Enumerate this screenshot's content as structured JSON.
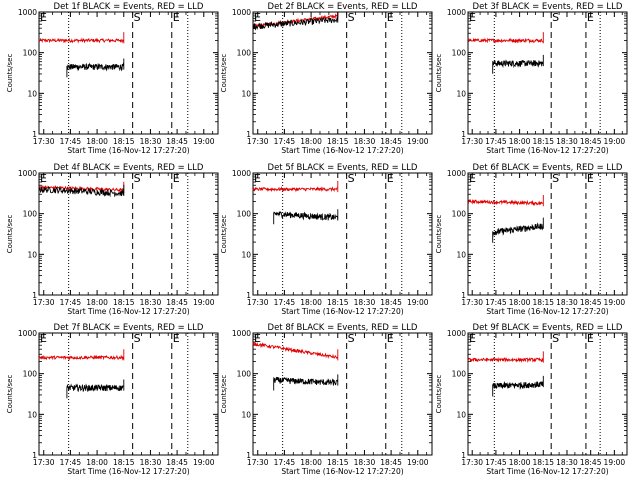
{
  "colors": {
    "events": "#000000",
    "lld": "#e00000",
    "axes": "#000000",
    "background": "#ffffff"
  },
  "chart_data": [
    {
      "type": "line",
      "title": "Det 1f BLACK = Events, RED = LLD",
      "xlabel": "Start Time (16-Nov-12 17:27:20)",
      "ylabel": "Counts/sec",
      "yscale": "log",
      "ylim": [
        1,
        1000
      ],
      "y_ticks": [
        "1",
        "10",
        "100",
        "1000"
      ],
      "x_ticks": [
        "17:30",
        "17:45",
        "18:00",
        "18:15",
        "18:30",
        "18:45",
        "19:00"
      ],
      "xlim": [
        "17:27:20",
        "19:08:00"
      ],
      "markers": [
        {
          "label": "E",
          "time": "17:27:20",
          "style": "dotted"
        },
        {
          "label": "",
          "time": "17:44:00",
          "style": "dotted"
        },
        {
          "label": "S",
          "time": "18:20:00",
          "style": "dashed"
        },
        {
          "label": "E",
          "time": "18:42:00",
          "style": "dashed"
        },
        {
          "label": "",
          "time": "18:51:00",
          "style": "dotted"
        }
      ],
      "series": [
        {
          "name": "LLD",
          "color": "#e00000",
          "x": [
            "17:27:20",
            "18:15:00"
          ],
          "y": [
            200,
            200
          ]
        },
        {
          "name": "Events",
          "color": "#000000",
          "x": [
            "17:43:00",
            "18:15:00"
          ],
          "y": [
            45,
            45
          ]
        }
      ]
    },
    {
      "type": "line",
      "title": "Det 2f BLACK = Events, RED = LLD",
      "xlabel": "Start Time (16-Nov-12 17:27:20)",
      "ylabel": "Counts/sec",
      "yscale": "log",
      "ylim": [
        1,
        1000
      ],
      "y_ticks": [
        "1",
        "10",
        "100",
        "1000"
      ],
      "x_ticks": [
        "17:30",
        "17:45",
        "18:00",
        "18:15",
        "18:30",
        "18:45",
        "19:00"
      ],
      "xlim": [
        "17:27:20",
        "19:08:00"
      ],
      "markers": [
        {
          "label": "E",
          "time": "17:27:20",
          "style": "dotted"
        },
        {
          "label": "",
          "time": "17:44:00",
          "style": "dotted"
        },
        {
          "label": "S",
          "time": "18:20:00",
          "style": "dashed"
        },
        {
          "label": "E",
          "time": "18:42:00",
          "style": "dashed"
        },
        {
          "label": "",
          "time": "18:51:00",
          "style": "dotted"
        }
      ],
      "series": [
        {
          "name": "LLD",
          "color": "#e00000",
          "x": [
            "17:27:20",
            "18:15:00"
          ],
          "y": [
            450,
            800
          ]
        },
        {
          "name": "Events",
          "color": "#000000",
          "x": [
            "17:27:20",
            "18:15:00"
          ],
          "y": [
            450,
            650
          ]
        }
      ]
    },
    {
      "type": "line",
      "title": "Det 3f BLACK = Events, RED = LLD",
      "xlabel": "Start Time (16-Nov-12 17:27:20)",
      "ylabel": "Counts/sec",
      "yscale": "log",
      "ylim": [
        1,
        1000
      ],
      "y_ticks": [
        "1",
        "10",
        "100",
        "1000"
      ],
      "x_ticks": [
        "17:30",
        "17:45",
        "18:00",
        "18:15",
        "18:30",
        "18:45",
        "19:00"
      ],
      "xlim": [
        "17:27:20",
        "19:08:00"
      ],
      "markers": [
        {
          "label": "E",
          "time": "17:27:20",
          "style": "dotted"
        },
        {
          "label": "",
          "time": "17:44:00",
          "style": "dotted"
        },
        {
          "label": "S",
          "time": "18:20:00",
          "style": "dashed"
        },
        {
          "label": "E",
          "time": "18:42:00",
          "style": "dashed"
        },
        {
          "label": "",
          "time": "18:51:00",
          "style": "dotted"
        }
      ],
      "series": [
        {
          "name": "LLD",
          "color": "#e00000",
          "x": [
            "17:27:20",
            "18:15:00"
          ],
          "y": [
            200,
            200
          ]
        },
        {
          "name": "Events",
          "color": "#000000",
          "x": [
            "17:43:00",
            "18:15:00"
          ],
          "y": [
            55,
            55
          ]
        }
      ]
    },
    {
      "type": "line",
      "title": "Det 4f BLACK = Events, RED = LLD",
      "xlabel": "Start Time (16-Nov-12 17:27:20)",
      "ylabel": "Counts/sec",
      "yscale": "log",
      "ylim": [
        1,
        1000
      ],
      "y_ticks": [
        "1",
        "10",
        "100",
        "1000"
      ],
      "x_ticks": [
        "17:30",
        "17:45",
        "18:00",
        "18:15",
        "18:30",
        "18:45",
        "19:00"
      ],
      "xlim": [
        "17:27:20",
        "19:08:00"
      ],
      "markers": [
        {
          "label": "E",
          "time": "17:27:20",
          "style": "dotted"
        },
        {
          "label": "",
          "time": "17:44:00",
          "style": "dotted"
        },
        {
          "label": "S",
          "time": "18:20:00",
          "style": "dashed"
        },
        {
          "label": "E",
          "time": "18:42:00",
          "style": "dashed"
        },
        {
          "label": "",
          "time": "18:51:00",
          "style": "dotted"
        }
      ],
      "series": [
        {
          "name": "LLD",
          "color": "#e00000",
          "x": [
            "17:27:20",
            "18:15:00"
          ],
          "y": [
            450,
            380
          ]
        },
        {
          "name": "Events",
          "color": "#000000",
          "x": [
            "17:27:20",
            "18:15:00"
          ],
          "y": [
            400,
            320
          ]
        }
      ]
    },
    {
      "type": "line",
      "title": "Det 5f BLACK = Events, RED = LLD",
      "xlabel": "Start Time (16-Nov-12 17:27:20)",
      "ylabel": "Counts/sec",
      "yscale": "log",
      "ylim": [
        1,
        1000
      ],
      "y_ticks": [
        "1",
        "10",
        "100",
        "1000"
      ],
      "x_ticks": [
        "17:30",
        "17:45",
        "18:00",
        "18:15",
        "18:30",
        "18:45",
        "19:00"
      ],
      "xlim": [
        "17:27:20",
        "19:08:00"
      ],
      "markers": [
        {
          "label": "E",
          "time": "17:27:20",
          "style": "dotted"
        },
        {
          "label": "",
          "time": "17:44:00",
          "style": "dotted"
        },
        {
          "label": "S",
          "time": "18:20:00",
          "style": "dashed"
        },
        {
          "label": "E",
          "time": "18:42:00",
          "style": "dashed"
        },
        {
          "label": "",
          "time": "18:51:00",
          "style": "dotted"
        }
      ],
      "series": [
        {
          "name": "LLD",
          "color": "#e00000",
          "x": [
            "17:27:20",
            "18:15:00"
          ],
          "y": [
            400,
            400
          ]
        },
        {
          "name": "Events",
          "color": "#000000",
          "x": [
            "17:39:00",
            "18:15:00"
          ],
          "y": [
            100,
            80
          ]
        }
      ]
    },
    {
      "type": "line",
      "title": "Det 6f BLACK = Events, RED = LLD",
      "xlabel": "Start Time (16-Nov-12 17:27:20)",
      "ylabel": "Counts/sec",
      "yscale": "log",
      "ylim": [
        1,
        1000
      ],
      "y_ticks": [
        "1",
        "10",
        "100",
        "1000"
      ],
      "x_ticks": [
        "17:30",
        "17:45",
        "18:00",
        "18:15",
        "18:30",
        "18:45",
        "19:00"
      ],
      "xlim": [
        "17:27:20",
        "19:08:00"
      ],
      "markers": [
        {
          "label": "E",
          "time": "17:27:20",
          "style": "dotted"
        },
        {
          "label": "",
          "time": "17:44:00",
          "style": "dotted"
        },
        {
          "label": "S",
          "time": "18:20:00",
          "style": "dashed"
        },
        {
          "label": "E",
          "time": "18:42:00",
          "style": "dashed"
        },
        {
          "label": "",
          "time": "18:51:00",
          "style": "dotted"
        }
      ],
      "series": [
        {
          "name": "LLD",
          "color": "#e00000",
          "x": [
            "17:27:20",
            "18:15:00"
          ],
          "y": [
            200,
            180
          ]
        },
        {
          "name": "Events",
          "color": "#000000",
          "x": [
            "17:43:00",
            "18:15:00"
          ],
          "y": [
            35,
            50
          ]
        }
      ]
    },
    {
      "type": "line",
      "title": "Det 7f BLACK = Events, RED = LLD",
      "xlabel": "Start Time (16-Nov-12 17:27:20)",
      "ylabel": "Counts/sec",
      "yscale": "log",
      "ylim": [
        1,
        1000
      ],
      "y_ticks": [
        "1",
        "10",
        "100",
        "1000"
      ],
      "x_ticks": [
        "17:30",
        "17:45",
        "18:00",
        "18:15",
        "18:30",
        "18:45",
        "19:00"
      ],
      "xlim": [
        "17:27:20",
        "19:08:00"
      ],
      "markers": [
        {
          "label": "E",
          "time": "17:27:20",
          "style": "dotted"
        },
        {
          "label": "",
          "time": "17:44:00",
          "style": "dotted"
        },
        {
          "label": "S",
          "time": "18:20:00",
          "style": "dashed"
        },
        {
          "label": "E",
          "time": "18:42:00",
          "style": "dashed"
        },
        {
          "label": "",
          "time": "18:51:00",
          "style": "dotted"
        }
      ],
      "series": [
        {
          "name": "LLD",
          "color": "#e00000",
          "x": [
            "17:27:20",
            "18:15:00"
          ],
          "y": [
            250,
            250
          ]
        },
        {
          "name": "Events",
          "color": "#000000",
          "x": [
            "17:43:00",
            "18:15:00"
          ],
          "y": [
            45,
            45
          ]
        }
      ]
    },
    {
      "type": "line",
      "title": "Det 8f BLACK = Events, RED = LLD",
      "xlabel": "Start Time (16-Nov-12 17:27:20)",
      "ylabel": "Counts/sec",
      "yscale": "log",
      "ylim": [
        1,
        1000
      ],
      "y_ticks": [
        "1",
        "10",
        "100",
        "1000"
      ],
      "x_ticks": [
        "17:30",
        "17:45",
        "18:00",
        "18:15",
        "18:30",
        "18:45",
        "19:00"
      ],
      "xlim": [
        "17:27:20",
        "19:08:00"
      ],
      "markers": [
        {
          "label": "E",
          "time": "17:27:20",
          "style": "dotted"
        },
        {
          "label": "",
          "time": "17:44:00",
          "style": "dotted"
        },
        {
          "label": "S",
          "time": "18:20:00",
          "style": "dashed"
        },
        {
          "label": "E",
          "time": "18:42:00",
          "style": "dashed"
        },
        {
          "label": "",
          "time": "18:51:00",
          "style": "dotted"
        }
      ],
      "series": [
        {
          "name": "LLD",
          "color": "#e00000",
          "x": [
            "17:27:20",
            "18:15:00"
          ],
          "y": [
            550,
            250
          ]
        },
        {
          "name": "Events",
          "color": "#000000",
          "x": [
            "17:39:00",
            "18:15:00"
          ],
          "y": [
            70,
            60
          ]
        }
      ]
    },
    {
      "type": "line",
      "title": "Det 9f BLACK = Events, RED = LLD",
      "xlabel": "Start Time (16-Nov-12 17:27:20)",
      "ylabel": "Counts/sec",
      "yscale": "log",
      "ylim": [
        1,
        1000
      ],
      "y_ticks": [
        "1",
        "10",
        "100",
        "1000"
      ],
      "x_ticks": [
        "17:30",
        "17:45",
        "18:00",
        "18:15",
        "18:30",
        "18:45",
        "19:00"
      ],
      "xlim": [
        "17:27:20",
        "19:08:00"
      ],
      "markers": [
        {
          "label": "E",
          "time": "17:27:20",
          "style": "dotted"
        },
        {
          "label": "",
          "time": "17:44:00",
          "style": "dotted"
        },
        {
          "label": "S",
          "time": "18:20:00",
          "style": "dashed"
        },
        {
          "label": "E",
          "time": "18:42:00",
          "style": "dashed"
        },
        {
          "label": "",
          "time": "18:51:00",
          "style": "dotted"
        }
      ],
      "series": [
        {
          "name": "LLD",
          "color": "#e00000",
          "x": [
            "17:27:20",
            "18:15:00"
          ],
          "y": [
            220,
            220
          ]
        },
        {
          "name": "Events",
          "color": "#000000",
          "x": [
            "17:43:00",
            "18:15:00"
          ],
          "y": [
            50,
            55
          ]
        }
      ]
    }
  ]
}
